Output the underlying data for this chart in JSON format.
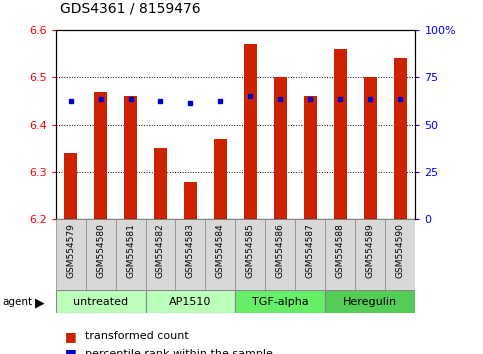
{
  "title": "GDS4361 / 8159476",
  "samples": [
    "GSM554579",
    "GSM554580",
    "GSM554581",
    "GSM554582",
    "GSM554583",
    "GSM554584",
    "GSM554585",
    "GSM554586",
    "GSM554587",
    "GSM554588",
    "GSM554589",
    "GSM554590"
  ],
  "bar_values": [
    6.34,
    6.47,
    6.46,
    6.35,
    6.28,
    6.37,
    6.57,
    6.5,
    6.46,
    6.56,
    6.5,
    6.54
  ],
  "percentile_values": [
    6.45,
    6.455,
    6.455,
    6.45,
    6.445,
    6.45,
    6.46,
    6.455,
    6.455,
    6.455,
    6.455,
    6.455
  ],
  "bar_color": "#cc2200",
  "percentile_color": "#0000cc",
  "ymin": 6.2,
  "ymax": 6.6,
  "right_ytick_pcts": [
    0,
    25,
    50,
    75,
    100
  ],
  "right_ytick_labels": [
    "0",
    "25",
    "50",
    "75",
    "100%"
  ],
  "agent_groups": [
    {
      "label": "untreated",
      "start": 0,
      "end": 3,
      "color": "#bbffbb"
    },
    {
      "label": "AP1510",
      "start": 3,
      "end": 6,
      "color": "#bbffbb"
    },
    {
      "label": "TGF-alpha",
      "start": 6,
      "end": 9,
      "color": "#66ee66"
    },
    {
      "label": "Heregulin",
      "start": 9,
      "end": 12,
      "color": "#55cc55"
    }
  ],
  "bar_width": 0.45,
  "legend_labels": [
    "transformed count",
    "percentile rank within the sample"
  ],
  "legend_colors": [
    "#cc2200",
    "#0000cc"
  ],
  "title_fontsize": 10,
  "axis_label_fontsize": 8,
  "sample_label_fontsize": 6.5,
  "agent_fontsize": 8,
  "legend_fontsize": 8
}
